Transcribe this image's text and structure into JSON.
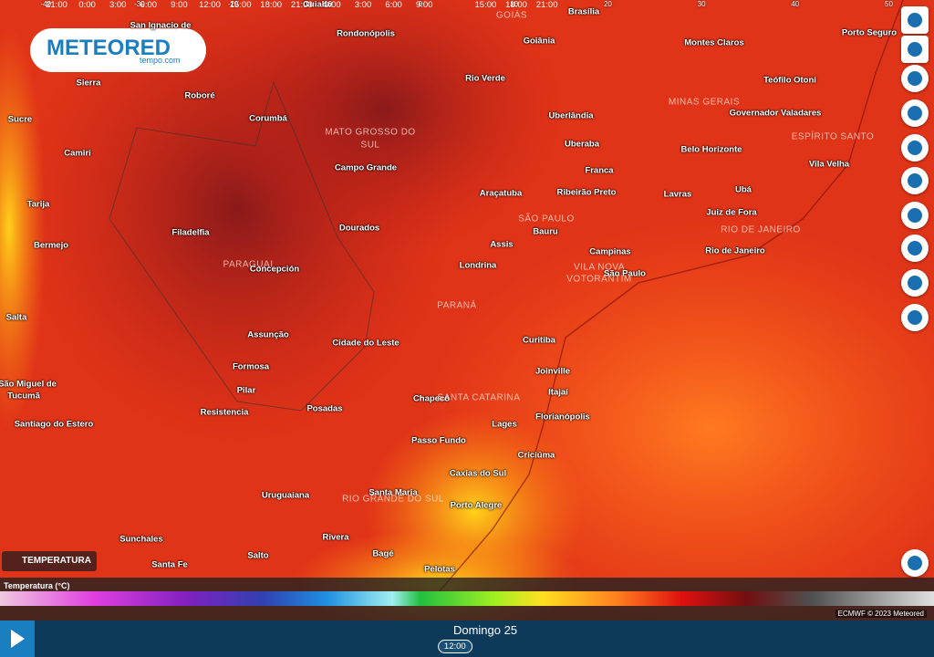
{
  "header": {
    "logo": "METEORED",
    "logo_sub": "tempo.com"
  },
  "layer": {
    "label": "TEMPERATURA"
  },
  "cities": [
    "Cuiabá",
    "San Ignacio de",
    "Rondonópolis",
    "Brasília",
    "Goiânia",
    "Montes Claros",
    "Porto Seguro",
    "Sucre",
    "Sierra",
    "Roboré",
    "Corumbá",
    "Rio Verde",
    "Teófilo Otoni",
    "Governador Valadares",
    "Uberlândia",
    "Camiri",
    "Uberaba",
    "Belo Horizonte",
    "Campo Grande",
    "Franca",
    "Vila Velha",
    "Araçatuba",
    "Ribeirão Preto",
    "Lavras",
    "Ubá",
    "Tarija",
    "Juiz de Fora",
    "Filadelfia",
    "Dourados",
    "Bauru",
    "Bermejo",
    "Assis",
    "Campinas",
    "Rio de Janeiro",
    "Concepción",
    "Londrina",
    "São Paulo",
    "Salta",
    "Assunção",
    "Cidade do Leste",
    "Curitiba",
    "Formosa",
    "Joinville",
    "São Miguel de",
    "Tucumã",
    "Pilar",
    "Itajaí",
    "Chapecó",
    "Resistencia",
    "Posadas",
    "Florianópolis",
    "Santiago do Estero",
    "Lages",
    "Passo Fundo",
    "Criciúma",
    "Caxias do Sul",
    "Santa Maria",
    "Uruguaiana",
    "Porto Alegre",
    "Sunchales",
    "Rivera",
    "Santa Fe",
    "Salto",
    "Bagé",
    "Pelotas"
  ],
  "regions": [
    "GOIÁS",
    "MINAS GERAIS",
    "MATO GROSSO DO",
    "SUL",
    "ESPÍRITO SANTO",
    "SÃO PAULO",
    "RIO DE JANEIRO",
    "PARAGUAI",
    "VILA NOVA",
    "VOTORANTIM",
    "PARANÁ",
    "SANTA CATARINA",
    "RIO GRANDE DO SUL"
  ],
  "legend": {
    "title": "Temperatura (°C)",
    "ticks": [
      -40,
      -30,
      -20,
      -10,
      0,
      10,
      20,
      30,
      40,
      50
    ]
  },
  "credit": "ECMWF © 2023 Meteored",
  "timeline": {
    "day": "Domingo 25",
    "hours": [
      "21:00",
      "0:00",
      "3:00",
      "6:00",
      "9:00",
      "12:00",
      "15:00",
      "18:00",
      "21:00",
      "0:00",
      "3:00",
      "6:00",
      "9:00",
      "12:00",
      "15:00",
      "18:00",
      "21:00"
    ],
    "selected": 13
  }
}
